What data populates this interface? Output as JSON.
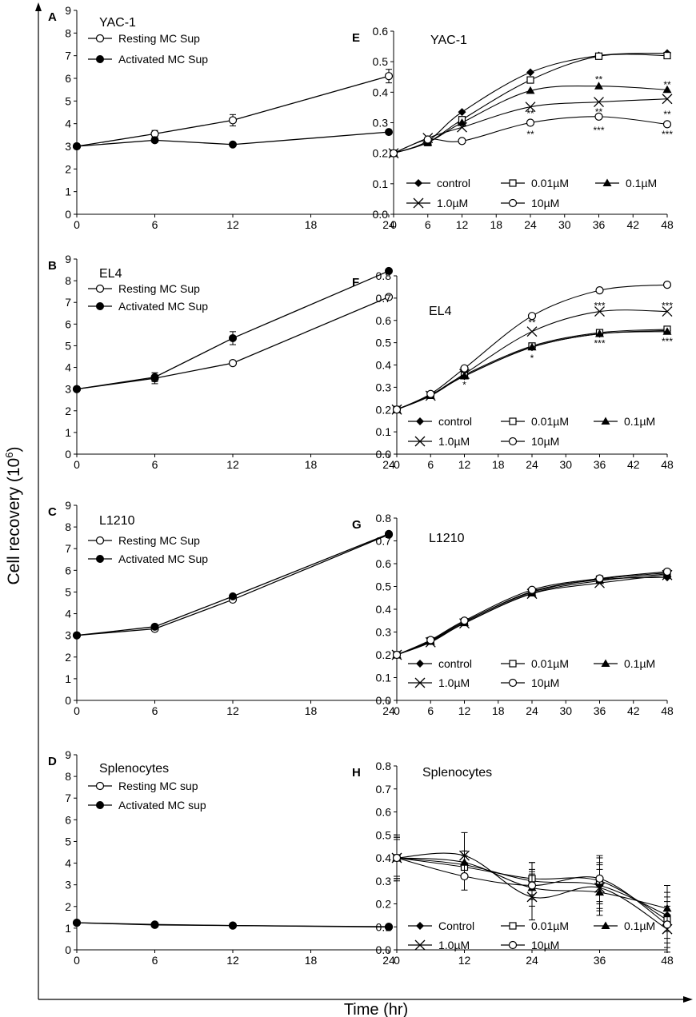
{
  "figure": {
    "ylabel": "Cell recovery (10",
    "ylabel_sup": "6",
    "ylabel_tail": ")",
    "xlabel": "Time (hr)"
  },
  "chart_data": [
    {
      "id": "A",
      "type": "line",
      "title": "YAC-1",
      "xlim": [
        0,
        24
      ],
      "xticks": [
        0,
        6,
        12,
        18,
        24
      ],
      "ylim": [
        0,
        9
      ],
      "yticks": [
        0,
        1,
        2,
        3,
        4,
        5,
        6,
        7,
        8,
        9
      ],
      "x": [
        0,
        6,
        12,
        24
      ],
      "series": [
        {
          "name": "Resting MC Sup",
          "marker": "open-circle",
          "values": [
            3.0,
            3.55,
            4.15,
            6.1
          ],
          "errors": [
            0.1,
            0.15,
            0.25,
            0.3
          ]
        },
        {
          "name": "Activated MC Sup",
          "marker": "filled-circle",
          "values": [
            3.0,
            3.27,
            3.08,
            3.63
          ],
          "errors": [
            0,
            0,
            0,
            0
          ]
        }
      ],
      "annotations": []
    },
    {
      "id": "B",
      "type": "line",
      "title": "EL4",
      "xlim": [
        0,
        24
      ],
      "xticks": [
        0,
        6,
        12,
        18,
        24
      ],
      "ylim": [
        0,
        9
      ],
      "yticks": [
        0,
        1,
        2,
        3,
        4,
        5,
        6,
        7,
        8,
        9
      ],
      "x": [
        0,
        6,
        12,
        24
      ],
      "series": [
        {
          "name": "Resting MC Sup",
          "marker": "open-circle",
          "values": [
            3.0,
            3.5,
            4.2,
            7.25
          ],
          "errors": [
            0,
            0.25,
            0,
            0
          ]
        },
        {
          "name": "Activated MC Sup",
          "marker": "filled-circle",
          "values": [
            3.0,
            3.55,
            5.35,
            8.45
          ],
          "errors": [
            0,
            0.2,
            0.3,
            0
          ]
        }
      ],
      "annotations": []
    },
    {
      "id": "C",
      "type": "line",
      "title": "L1210",
      "xlim": [
        0,
        24
      ],
      "xticks": [
        0,
        6,
        12,
        18,
        24
      ],
      "ylim": [
        0,
        9
      ],
      "yticks": [
        0,
        1,
        2,
        3,
        4,
        5,
        6,
        7,
        8,
        9
      ],
      "x": [
        0,
        6,
        12,
        24
      ],
      "series": [
        {
          "name": "Resting MC Sup",
          "marker": "open-circle",
          "values": [
            3.0,
            3.3,
            4.65,
            7.65
          ],
          "errors": [
            0,
            0,
            0,
            0
          ]
        },
        {
          "name": "Activated MC Sup",
          "marker": "filled-circle",
          "values": [
            3.0,
            3.4,
            4.8,
            7.68
          ],
          "errors": [
            0,
            0,
            0,
            0
          ]
        }
      ],
      "annotations": []
    },
    {
      "id": "D",
      "type": "line",
      "title": "Splenocytes",
      "xlim": [
        0,
        24
      ],
      "xticks": [
        0,
        6,
        12,
        18,
        24
      ],
      "ylim": [
        0,
        9
      ],
      "yticks": [
        0,
        1,
        2,
        3,
        4,
        5,
        6,
        7,
        8,
        9
      ],
      "x": [
        0,
        6,
        12,
        24
      ],
      "series": [
        {
          "name": "Resting MC sup",
          "marker": "open-circle",
          "values": [
            1.25,
            1.15,
            1.12,
            1.05
          ],
          "errors": [
            0,
            0,
            0,
            0
          ]
        },
        {
          "name": "Activated MC sup",
          "marker": "filled-circle",
          "values": [
            1.25,
            1.17,
            1.12,
            1.07
          ],
          "errors": [
            0,
            0,
            0,
            0
          ]
        }
      ],
      "annotations": []
    },
    {
      "id": "E",
      "type": "line",
      "title": "YAC-1",
      "xlim": [
        0,
        48
      ],
      "xticks": [
        0,
        6,
        12,
        18,
        24,
        30,
        36,
        42,
        48
      ],
      "ylim": [
        0,
        0.6
      ],
      "yticks": [
        0,
        0.1,
        0.2,
        0.3,
        0.4,
        0.5,
        0.6
      ],
      "x": [
        0,
        6,
        12,
        24,
        36,
        48
      ],
      "series": [
        {
          "name": "control",
          "marker": "diamond",
          "values": [
            0.2,
            0.24,
            0.335,
            0.465,
            0.52,
            0.528
          ]
        },
        {
          "name": "0.01µM",
          "marker": "open-square",
          "values": [
            0.2,
            0.235,
            0.31,
            0.44,
            0.518,
            0.52
          ]
        },
        {
          "name": "0.1µM",
          "marker": "triangle",
          "values": [
            0.2,
            0.235,
            0.3,
            0.405,
            0.42,
            0.408
          ]
        },
        {
          "name": "1.0µM",
          "marker": "cross",
          "values": [
            0.2,
            0.25,
            0.285,
            0.352,
            0.368,
            0.378
          ]
        },
        {
          "name": "10µM",
          "marker": "open-circle",
          "values": [
            0.2,
            0.245,
            0.24,
            0.3,
            0.32,
            0.295
          ]
        }
      ],
      "annotations": [
        {
          "x": 36,
          "y": 0.442,
          "text": "**"
        },
        {
          "x": 48,
          "y": 0.425,
          "text": "**"
        },
        {
          "x": 24,
          "y": 0.33,
          "text": "**"
        },
        {
          "x": 36,
          "y": 0.335,
          "text": "**"
        },
        {
          "x": 48,
          "y": 0.328,
          "text": "**"
        },
        {
          "x": 24,
          "y": 0.262,
          "text": "**"
        },
        {
          "x": 36,
          "y": 0.275,
          "text": "***"
        },
        {
          "x": 48,
          "y": 0.262,
          "text": "***"
        }
      ]
    },
    {
      "id": "F",
      "type": "line",
      "title": "EL4",
      "xlim": [
        0,
        48
      ],
      "xticks": [
        0,
        6,
        12,
        18,
        24,
        30,
        36,
        42,
        48
      ],
      "ylim": [
        0,
        0.8
      ],
      "yticks": [
        0,
        0.1,
        0.2,
        0.3,
        0.4,
        0.5,
        0.6,
        0.7,
        0.8
      ],
      "x": [
        0,
        6,
        12,
        24,
        36,
        48
      ],
      "series": [
        {
          "name": "control",
          "marker": "diamond",
          "values": [
            0.2,
            0.265,
            0.35,
            0.48,
            0.54,
            0.555
          ]
        },
        {
          "name": "0.01µM",
          "marker": "open-square",
          "values": [
            0.2,
            0.265,
            0.355,
            0.485,
            0.545,
            0.56
          ]
        },
        {
          "name": "0.1µM",
          "marker": "triangle",
          "values": [
            0.2,
            0.262,
            0.35,
            0.48,
            0.54,
            0.55
          ]
        },
        {
          "name": "1.0µM",
          "marker": "cross",
          "values": [
            0.2,
            0.262,
            0.36,
            0.55,
            0.64,
            0.64
          ]
        },
        {
          "name": "10µM",
          "marker": "open-circle",
          "values": [
            0.2,
            0.27,
            0.385,
            0.62,
            0.735,
            0.76
          ]
        }
      ],
      "annotations": [
        {
          "x": 24,
          "y": 0.59,
          "text": "**"
        },
        {
          "x": 36,
          "y": 0.665,
          "text": "***"
        },
        {
          "x": 48,
          "y": 0.665,
          "text": "***"
        },
        {
          "x": 12,
          "y": 0.31,
          "text": "*"
        },
        {
          "x": 24,
          "y": 0.43,
          "text": "*"
        },
        {
          "x": 36,
          "y": 0.497,
          "text": "***"
        },
        {
          "x": 48,
          "y": 0.505,
          "text": "***"
        }
      ]
    },
    {
      "id": "G",
      "type": "line",
      "title": "L1210",
      "xlim": [
        0,
        48
      ],
      "xticks": [
        0,
        6,
        12,
        18,
        24,
        30,
        36,
        42,
        48
      ],
      "ylim": [
        0,
        0.8
      ],
      "yticks": [
        0,
        0.1,
        0.2,
        0.3,
        0.4,
        0.5,
        0.6,
        0.7,
        0.8
      ],
      "x": [
        0,
        6,
        12,
        24,
        36,
        48
      ],
      "series": [
        {
          "name": "control",
          "marker": "diamond",
          "values": [
            0.2,
            0.26,
            0.345,
            0.475,
            0.53,
            0.54
          ]
        },
        {
          "name": "0.01µM",
          "marker": "open-square",
          "values": [
            0.2,
            0.262,
            0.345,
            0.478,
            0.532,
            0.56
          ]
        },
        {
          "name": "0.1µM",
          "marker": "triangle",
          "values": [
            0.2,
            0.258,
            0.34,
            0.47,
            0.525,
            0.555
          ]
        },
        {
          "name": "1.0µM",
          "marker": "cross",
          "values": [
            0.2,
            0.255,
            0.338,
            0.468,
            0.515,
            0.55
          ]
        },
        {
          "name": "10µM",
          "marker": "open-circle",
          "values": [
            0.2,
            0.265,
            0.35,
            0.485,
            0.535,
            0.565
          ]
        }
      ],
      "annotations": []
    },
    {
      "id": "H",
      "type": "line",
      "title": "Splenocytes",
      "xlim": [
        0,
        48
      ],
      "xticks": [
        0,
        12,
        24,
        36,
        48
      ],
      "ylim": [
        0,
        0.8
      ],
      "yticks": [
        0,
        0.1,
        0.2,
        0.3,
        0.4,
        0.5,
        0.6,
        0.7,
        0.8
      ],
      "x": [
        0,
        12,
        24,
        36,
        48
      ],
      "series": [
        {
          "name": "Control",
          "marker": "diamond",
          "values": [
            0.4,
            0.37,
            0.3,
            0.28,
            0.15
          ],
          "errors": [
            0.09,
            0.06,
            0.08,
            0.1,
            0.1
          ]
        },
        {
          "name": "0.01µM",
          "marker": "open-square",
          "values": [
            0.4,
            0.36,
            0.31,
            0.3,
            0.13
          ],
          "errors": [
            0.08,
            0.05,
            0.07,
            0.1,
            0.1
          ]
        },
        {
          "name": "0.1µM",
          "marker": "triangle",
          "values": [
            0.4,
            0.38,
            0.27,
            0.25,
            0.18
          ],
          "errors": [
            0.09,
            0.05,
            0.08,
            0.1,
            0.1
          ]
        },
        {
          "name": "1.0µM",
          "marker": "cross",
          "values": [
            0.4,
            0.41,
            0.23,
            0.27,
            0.09
          ],
          "errors": [
            0.1,
            0.1,
            0.1,
            0.1,
            0.1
          ]
        },
        {
          "name": "10µM",
          "marker": "open-circle",
          "values": [
            0.4,
            0.32,
            0.28,
            0.31,
            0.11
          ],
          "errors": [
            0.09,
            0.06,
            0.06,
            0.1,
            0.1
          ]
        }
      ],
      "annotations": []
    }
  ]
}
